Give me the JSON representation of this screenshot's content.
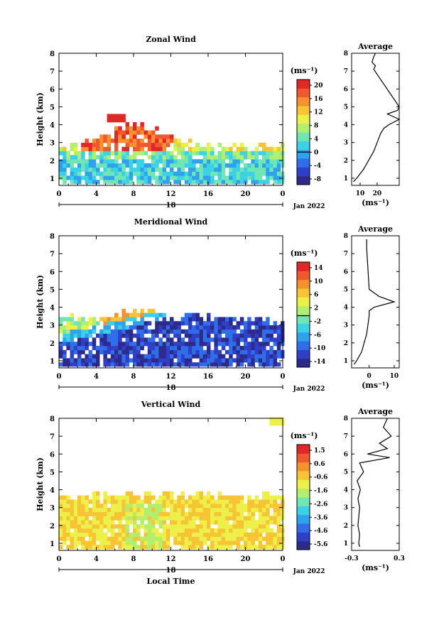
{
  "date_label": "Jan 2022",
  "day_label": "18",
  "xlabel": "Local Time",
  "ylabel": "Height (km)",
  "unit_label": "(ms⁻¹)",
  "avg_title": "Average",
  "x_ticks": [
    "0",
    "4",
    "8",
    "12",
    "16",
    "20",
    "0"
  ],
  "y_ticks": [
    "1",
    "2",
    "3",
    "4",
    "5",
    "6",
    "7",
    "8"
  ],
  "panels": [
    {
      "title": "Zonal Wind",
      "colorbar_ticks": [
        "20",
        "16",
        "12",
        "8",
        "4",
        "0",
        "-4",
        "-8"
      ],
      "avg_ticks": [
        "10",
        "20"
      ]
    },
    {
      "title": "Meridional Wind",
      "colorbar_ticks": [
        "14",
        "10",
        "6",
        "2",
        "-2",
        "-6",
        "-10",
        "-14"
      ],
      "avg_ticks": [
        "0",
        "10"
      ]
    },
    {
      "title": "Vertical Wind",
      "colorbar_ticks": [
        "1.5",
        "0.6",
        "-0.6",
        "-1.6",
        "-2.6",
        "-3.6",
        "-4.6",
        "-5.6"
      ],
      "avg_ticks": [
        "-0.3",
        "0.3"
      ]
    }
  ],
  "chart_data": [
    {
      "type": "heatmap",
      "title": "Zonal Wind",
      "xlabel": "Local Time",
      "ylabel": "Height (km)",
      "xlim": [
        0,
        24
      ],
      "ylim": [
        0.6,
        8
      ],
      "colorbar_range": [
        -10,
        22
      ],
      "note_values": "approximate field: strong westerlies 20+ ms-1 near 2.5-4 km during 4-12 LT, weaker 2-8 ms-1 below 2.5 km",
      "profile": {
        "title": "Average",
        "xlim": [
          5,
          33
        ],
        "height": [
          0.8,
          1.0,
          1.5,
          2.0,
          2.5,
          3.0,
          3.5,
          3.8,
          4.0,
          4.3,
          4.6,
          4.8,
          5.0,
          7.1,
          7.3,
          7.5,
          7.8,
          8.0
        ],
        "value": [
          6,
          8,
          12,
          15,
          18,
          20,
          22,
          24,
          27,
          33,
          26,
          32,
          35,
          18,
          19,
          17,
          18,
          19
        ]
      }
    },
    {
      "type": "heatmap",
      "title": "Meridional Wind",
      "xlabel": "Local Time",
      "ylabel": "Height (km)",
      "xlim": [
        0,
        24
      ],
      "ylim": [
        0.6,
        8
      ],
      "colorbar_range": [
        -16,
        16
      ],
      "profile": {
        "title": "Average",
        "xlim": [
          -7,
          12
        ],
        "height": [
          0.8,
          1.0,
          1.5,
          2.0,
          2.5,
          3.0,
          3.5,
          3.8,
          4.0,
          4.3,
          4.6,
          5.0,
          7.3,
          7.5,
          7.8
        ],
        "value": [
          -6,
          -5,
          -3,
          -2,
          -1,
          -0.5,
          0,
          0,
          2,
          10,
          4,
          0,
          -1,
          -1,
          -1
        ]
      }
    },
    {
      "type": "heatmap",
      "title": "Vertical Wind",
      "xlabel": "Local Time",
      "ylabel": "Height (km)",
      "xlim": [
        0,
        24
      ],
      "ylim": [
        0.6,
        8
      ],
      "colorbar_range": [
        -6,
        2
      ],
      "profile": {
        "title": "Average",
        "xlim": [
          -0.3,
          0.3
        ],
        "height": [
          0.8,
          1.0,
          1.5,
          2.0,
          2.5,
          3.0,
          3.5,
          4.0,
          4.5,
          5.0,
          5.5,
          5.8,
          6.0,
          6.3,
          6.6,
          7.0,
          7.5,
          8.0
        ],
        "value": [
          -0.2,
          -0.21,
          -0.2,
          -0.22,
          -0.21,
          -0.2,
          -0.22,
          -0.19,
          -0.23,
          -0.15,
          -0.2,
          0.18,
          -0.1,
          0.15,
          0.05,
          0.2,
          0.1,
          0.15
        ]
      }
    }
  ]
}
